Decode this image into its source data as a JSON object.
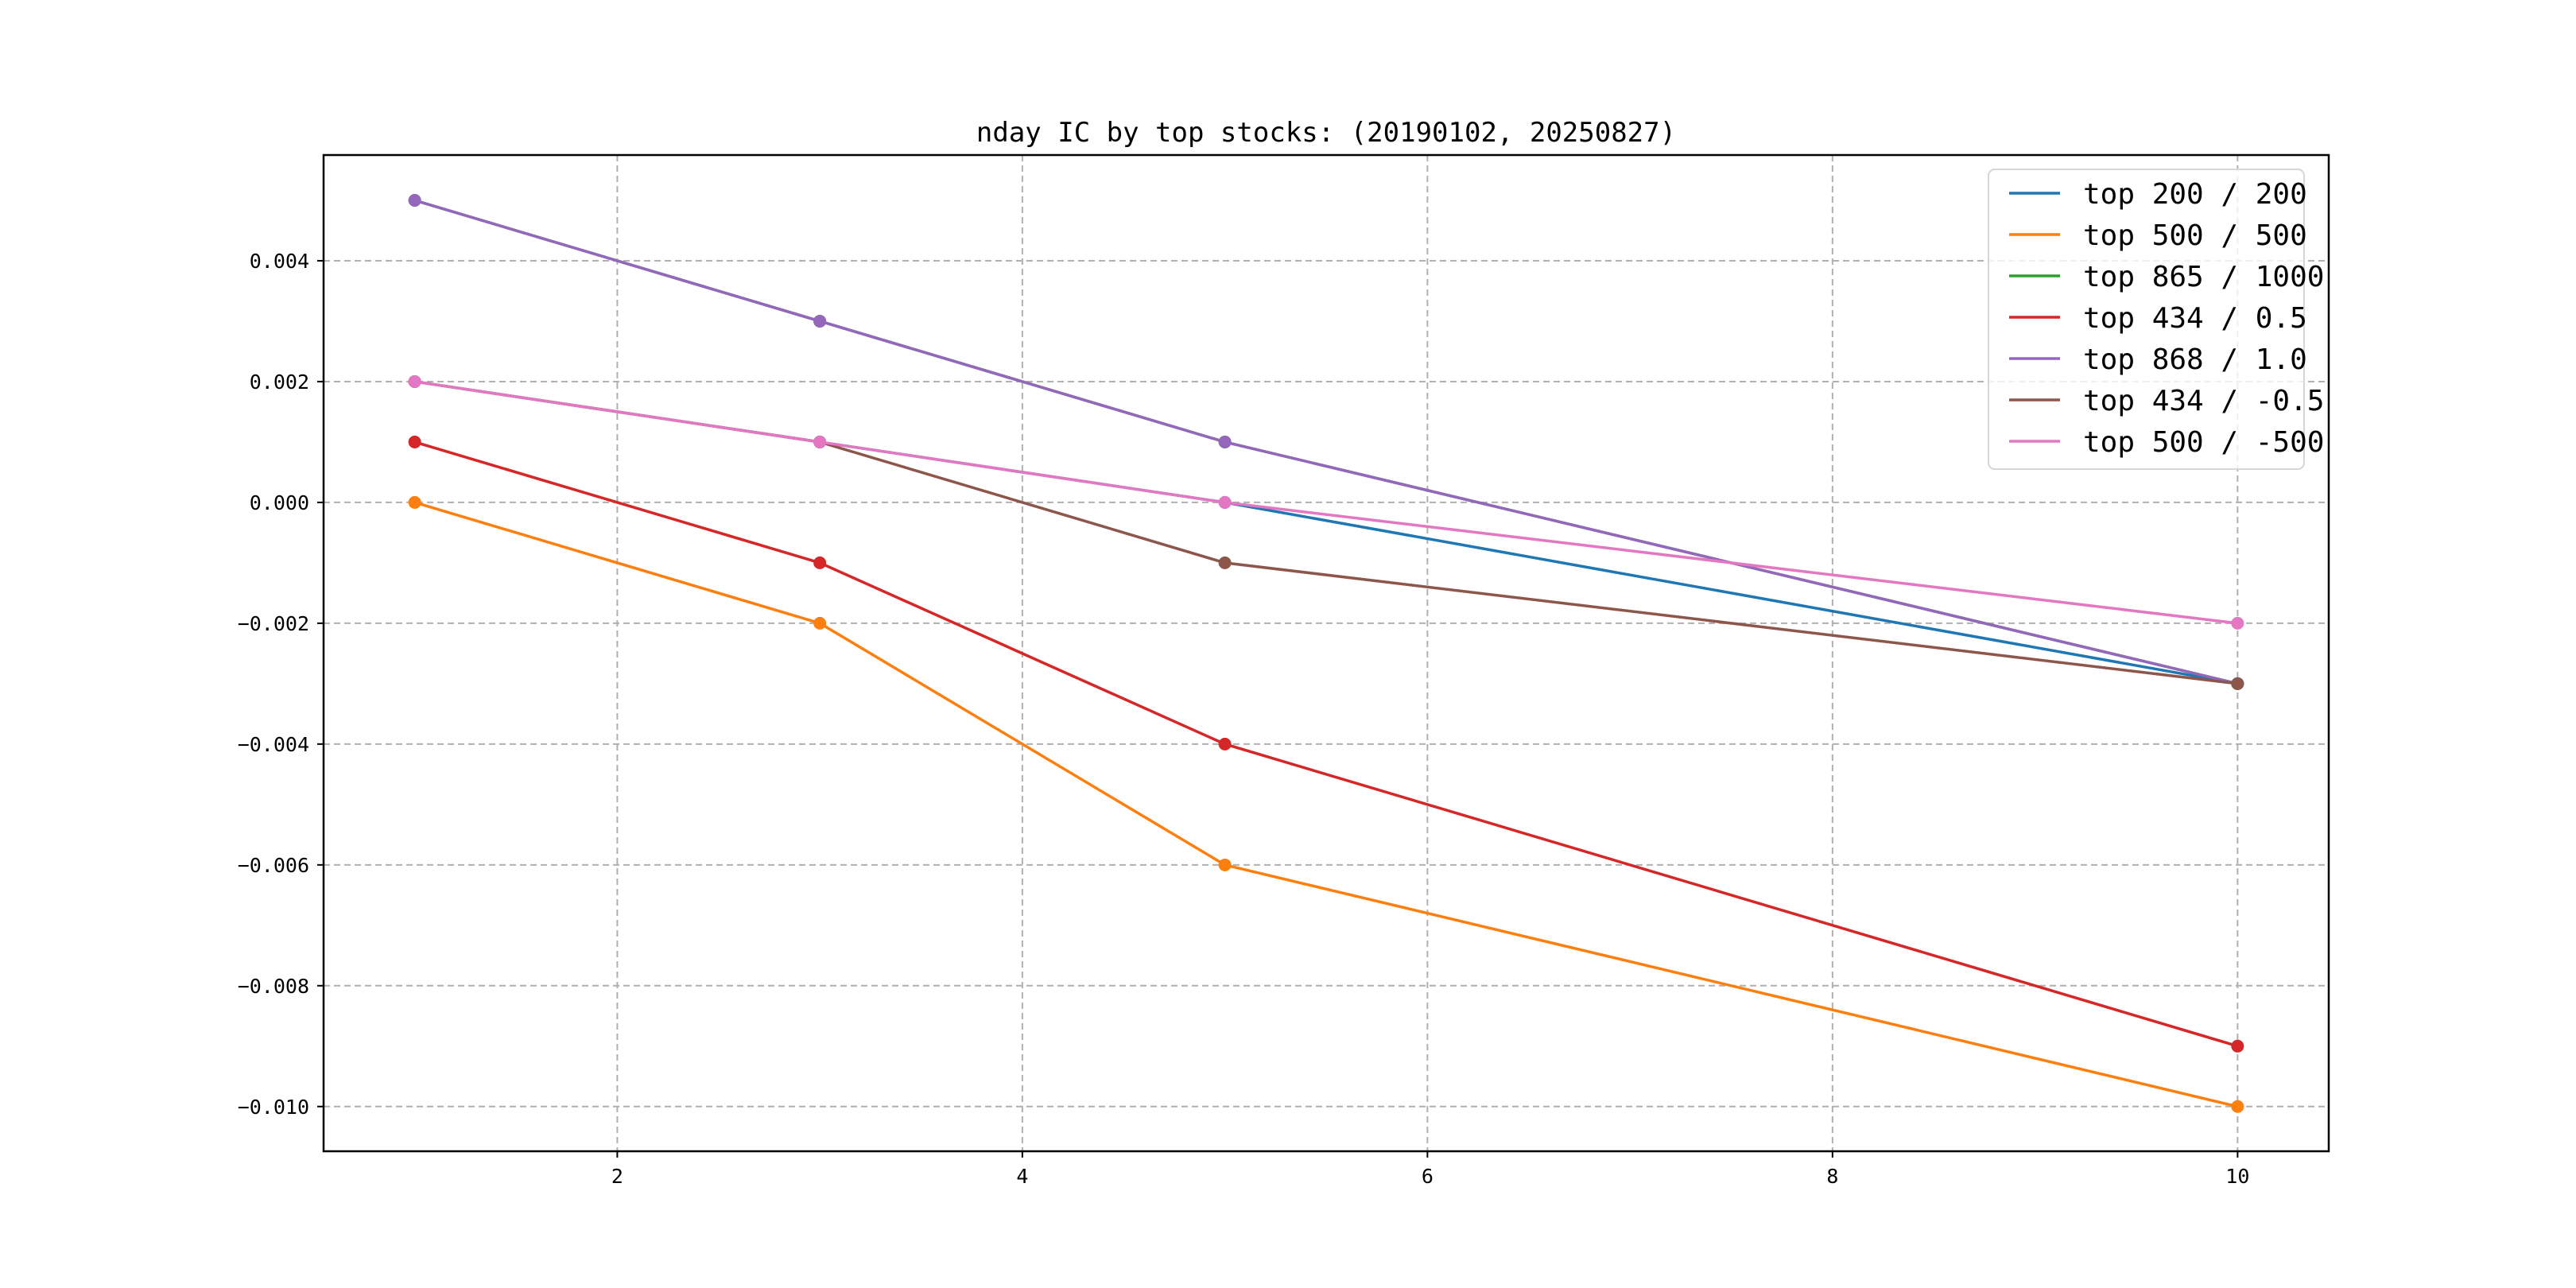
{
  "chart_data": {
    "type": "line",
    "title": "nday IC by top stocks: (20190102, 20250827)",
    "xlabel": "",
    "ylabel": "",
    "x": [
      1,
      3,
      5,
      10
    ],
    "xlim": [
      0.55,
      10.45
    ],
    "ylim": [
      -0.01074,
      0.00575
    ],
    "xticks": [
      2,
      4,
      6,
      8,
      10
    ],
    "xtick_labels": [
      "2",
      "4",
      "6",
      "8",
      "10"
    ],
    "yticks": [
      0.004,
      0.002,
      0.0,
      -0.002,
      -0.004,
      -0.006,
      -0.008,
      -0.01
    ],
    "ytick_labels": [
      "0.004",
      "0.002",
      "0.000",
      "−0.002",
      "−0.004",
      "−0.006",
      "−0.008",
      "−0.010"
    ],
    "grid": true,
    "legend_position": "top-right",
    "series": [
      {
        "name": "top 200 / 200",
        "color": "#1f77b4",
        "values": [
          0.002,
          0.001,
          0.0,
          -0.003
        ]
      },
      {
        "name": "top 500 / 500",
        "color": "#ff7f0e",
        "values": [
          0.0,
          -0.002,
          -0.006,
          -0.01
        ]
      },
      {
        "name": "top 865 / 1000",
        "color": "#2ca02c",
        "values": [
          0.005,
          0.003,
          0.001,
          -0.003
        ]
      },
      {
        "name": "top 434 / 0.5",
        "color": "#d62728",
        "values": [
          0.001,
          -0.001,
          -0.004,
          -0.009
        ]
      },
      {
        "name": "top 868 / 1.0",
        "color": "#9467bd",
        "values": [
          0.005,
          0.003,
          0.001,
          -0.003
        ]
      },
      {
        "name": "top 434 / -0.5",
        "color": "#8c564b",
        "values": [
          0.002,
          0.001,
          -0.001,
          -0.003
        ]
      },
      {
        "name": "top 500 / -500",
        "color": "#e377c2",
        "values": [
          0.002,
          0.001,
          0.0,
          -0.002
        ]
      }
    ]
  }
}
